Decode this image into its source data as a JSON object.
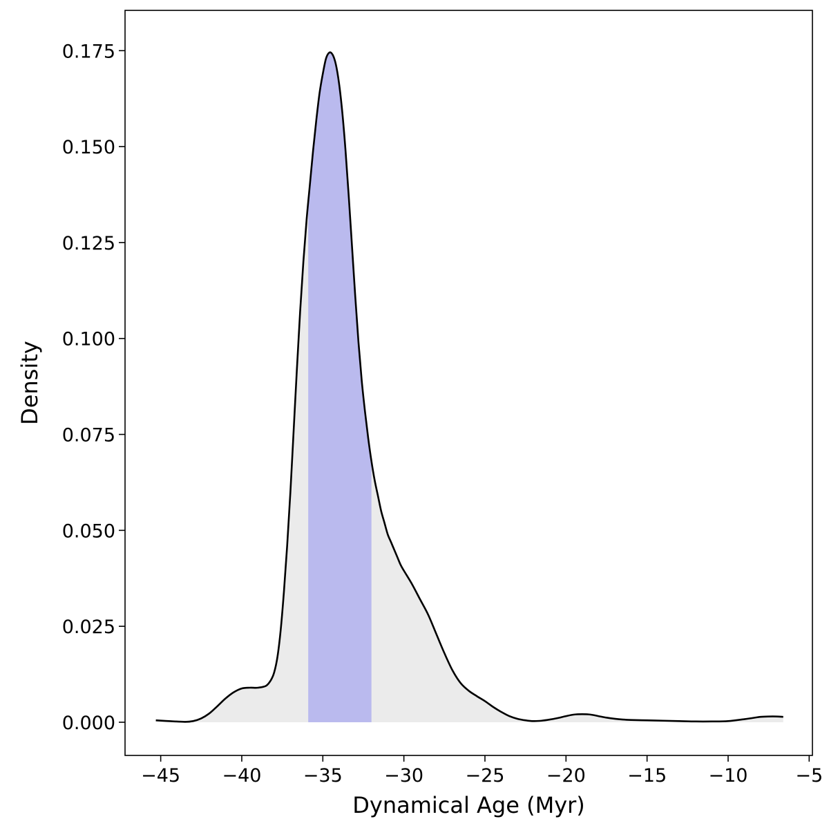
{
  "chart_data": {
    "type": "area",
    "title": "",
    "xlabel": "Dynamical Age (Myr)",
    "ylabel": "Density",
    "xlim": [
      -47.2,
      -4.8
    ],
    "ylim": [
      -0.00865,
      0.1855
    ],
    "x_ticks": [
      -45,
      -40,
      -35,
      -30,
      -25,
      -20,
      -15,
      -10,
      -5
    ],
    "x_tick_labels": [
      "−45",
      "−40",
      "−35",
      "−30",
      "−25",
      "−20",
      "−15",
      "−10",
      "−5"
    ],
    "y_ticks": [
      0.0,
      0.025,
      0.05,
      0.075,
      0.1,
      0.125,
      0.15,
      0.175
    ],
    "y_tick_labels": [
      "0.000",
      "0.025",
      "0.050",
      "0.075",
      "0.100",
      "0.125",
      "0.150",
      "0.175"
    ],
    "grid": false,
    "legend": "none",
    "highlight_interval": [
      -35.9,
      -32.0
    ],
    "colors": {
      "line": "#000000",
      "fill": "#ebebeb",
      "highlight": "#babaee"
    },
    "series": [
      {
        "x": [
          -45.3,
          -44.5,
          -43.5,
          -43.0,
          -42.5,
          -42.0,
          -41.5,
          -41.0,
          -40.5,
          -40.0,
          -39.5,
          -39.0,
          -38.5,
          -38.2,
          -38.0,
          -37.8,
          -37.6,
          -37.4,
          -37.2,
          -37.0,
          -36.8,
          -36.6,
          -36.4,
          -36.2,
          -36.0,
          -35.8,
          -35.6,
          -35.4,
          -35.2,
          -35.0,
          -34.8,
          -34.6,
          -34.4,
          -34.2,
          -34.0,
          -33.8,
          -33.6,
          -33.4,
          -33.2,
          -33.0,
          -32.8,
          -32.6,
          -32.4,
          -32.2,
          -32.0,
          -31.8,
          -31.6,
          -31.4,
          -31.2,
          -31.0,
          -30.8,
          -30.6,
          -30.4,
          -30.2,
          -30.0,
          -29.5,
          -29.0,
          -28.5,
          -28.0,
          -27.5,
          -27.0,
          -26.5,
          -26.0,
          -25.5,
          -25.0,
          -24.5,
          -24.0,
          -23.5,
          -23.0,
          -22.5,
          -22.0,
          -21.5,
          -21.0,
          -20.5,
          -20.0,
          -19.5,
          -19.0,
          -18.5,
          -18.0,
          -17.5,
          -17.0,
          -16.5,
          -16.0,
          -15.0,
          -14.0,
          -13.0,
          -12.0,
          -11.0,
          -10.0,
          -9.0,
          -8.5,
          -8.0,
          -7.5,
          -7.0,
          -6.6
        ],
        "y": [
          0.0005,
          0.0003,
          0.0001,
          0.0003,
          0.001,
          0.0023,
          0.0042,
          0.0062,
          0.0078,
          0.0088,
          0.009,
          0.009,
          0.0095,
          0.011,
          0.013,
          0.017,
          0.024,
          0.034,
          0.046,
          0.06,
          0.076,
          0.092,
          0.107,
          0.12,
          0.131,
          0.14,
          0.149,
          0.157,
          0.164,
          0.169,
          0.173,
          0.1745,
          0.174,
          0.1715,
          0.1665,
          0.159,
          0.149,
          0.137,
          0.124,
          0.111,
          0.099,
          0.089,
          0.081,
          0.074,
          0.068,
          0.063,
          0.059,
          0.055,
          0.052,
          0.049,
          0.047,
          0.045,
          0.043,
          0.041,
          0.0395,
          0.036,
          0.032,
          0.028,
          0.023,
          0.018,
          0.0135,
          0.0102,
          0.0082,
          0.0068,
          0.0055,
          0.004,
          0.0027,
          0.0016,
          0.0009,
          0.0005,
          0.0003,
          0.0004,
          0.0007,
          0.0011,
          0.0016,
          0.002,
          0.0021,
          0.002,
          0.0016,
          0.0012,
          0.0009,
          0.0007,
          0.0006,
          0.0005,
          0.0004,
          0.0003,
          0.0002,
          0.0002,
          0.0003,
          0.0008,
          0.0011,
          0.0014,
          0.0015,
          0.0015,
          0.0014
        ]
      }
    ]
  }
}
